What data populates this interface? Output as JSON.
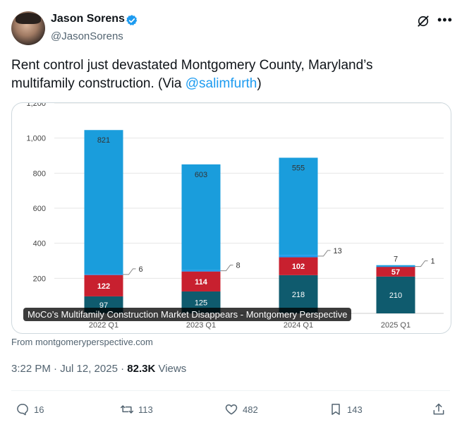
{
  "author": {
    "name": "Jason Sorens",
    "handle": "@JasonSorens"
  },
  "icons": {
    "verified": "verified-badge-icon",
    "grok": "grok-icon",
    "more": "more-icon",
    "reply": "reply-icon",
    "retweet": "retweet-icon",
    "like": "like-icon",
    "bookmark": "bookmark-icon",
    "share": "share-icon"
  },
  "colors": {
    "accent": "#1d9bf0",
    "bar_top": "#1a9ddc",
    "bar_mid": "#c8202f",
    "bar_bottom": "#0f5b6e"
  },
  "tweet": {
    "text_before": "Rent control just devastated Montgomery County, Maryland’s multifamily construction. (Via ",
    "mention": "@salimfurth",
    "text_after": ")"
  },
  "card": {
    "title": "MoCo’s Multifamily Construction Market Disappears - Montgomery Perspective",
    "source": "From montgomeryperspective.com"
  },
  "chart_data": {
    "type": "bar",
    "stacked": true,
    "categories": [
      "2022 Q1",
      "2023 Q1",
      "2024 Q1",
      "2025 Q1"
    ],
    "series": [
      {
        "values": [
          97,
          125,
          218,
          210
        ]
      },
      {
        "values": [
          122,
          114,
          102,
          57
        ]
      },
      {
        "values": [
          6,
          8,
          13,
          1
        ]
      },
      {
        "values": [
          821,
          603,
          555,
          7
        ]
      }
    ],
    "y_ticks": [
      "200",
      "400",
      "600",
      "800",
      "1,000",
      "1,200"
    ],
    "ylim": [
      0,
      1200
    ],
    "grid": true
  },
  "meta": {
    "time": "3:22 PM · Jul 12, 2025 · ",
    "views_count": "82.3K",
    "views_label": " Views"
  },
  "actions": {
    "replies": "16",
    "retweets": "113",
    "likes": "482",
    "bookmarks": "143"
  }
}
